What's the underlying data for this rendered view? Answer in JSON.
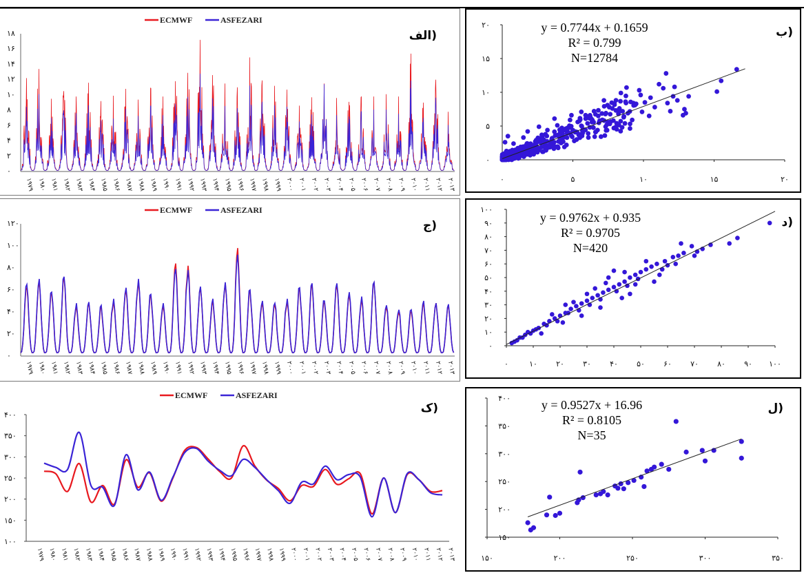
{
  "colors": {
    "ecmwf": "#e8191f",
    "asfezari": "#3a24d6",
    "point": "#3417d8"
  },
  "legend": {
    "ecmwf": "ECMWF",
    "asfezari": "ASFEZARI"
  },
  "chart_data": [
    {
      "id": "alef",
      "type": "line",
      "badge": "الف)",
      "title": "",
      "xlabel": "",
      "ylabel": "",
      "ylim": [
        0,
        18
      ],
      "yticks": [
        "۰",
        "۲",
        "۴",
        "۶",
        "۸",
        "۱۰",
        "۱۲",
        "۱۴",
        "۱۶",
        "۱۸"
      ],
      "xticks": [
        "۱۹۷۹",
        "۱۹۸۰",
        "۱۹۸۱",
        "۱۹۸۲",
        "۱۹۸۳",
        "۱۹۸۴",
        "۱۹۸۵",
        "۱۹۸۶",
        "۱۹۸۷",
        "۱۹۸۸",
        "۱۹۸۹",
        "۱۹۹۰",
        "۱۹۹۱",
        "۱۹۹۲",
        "۱۹۹۳",
        "۱۹۹۴",
        "۱۹۹۵",
        "۱۹۹۶",
        "۱۹۹۷",
        "۱۹۹۸",
        "۱۹۹۹",
        "۲۰۰۰",
        "۲۰۰۱",
        "۲۰۰۲",
        "۲۰۰۳",
        "۲۰۰۴",
        "۲۰۰۵",
        "۲۰۰۶",
        "۲۰۰۷",
        "۲۰۰۸",
        "۲۰۰۹",
        "۲۰۱۰",
        "۲۰۱۱",
        "۲۰۱۲",
        "۲۰۱۳"
      ],
      "series_note": "daily values 1979-2013, peak per year",
      "series": [
        {
          "name": "ECMWF",
          "peaks": [
            12.2,
            13.4,
            9.5,
            10.5,
            9.8,
            11.6,
            9.2,
            9.9,
            10.8,
            9.4,
            10.9,
            9.8,
            11.8,
            12.9,
            17.2,
            12.6,
            11.5,
            11.0,
            14.9,
            11.9,
            11.2,
            10.7,
            8.6,
            9.7,
            11.5,
            9.6,
            9.1,
            9.8,
            9.8,
            10.1,
            9.8,
            15.4,
            9.0,
            12.0,
            7.8
          ]
        },
        {
          "name": "ASFEZARI",
          "peaks": [
            9.2,
            11.0,
            7.6,
            8.7,
            8.3,
            9.4,
            7.3,
            7.5,
            8.9,
            7.9,
            9.3,
            8.0,
            9.6,
            10.6,
            13.9,
            10.4,
            9.3,
            9.0,
            12.2,
            9.9,
            9.4,
            9.2,
            7.1,
            8.1,
            12.4,
            8.0,
            7.8,
            8.5,
            8.8,
            8.8,
            8.2,
            12.9,
            7.6,
            10.5,
            6.6
          ]
        }
      ]
    },
    {
      "id": "be",
      "type": "scatter",
      "badge": "ب)",
      "equation": "y = 0.7744x + 0.1659",
      "r2": "R² = 0.799",
      "n": "N=12784",
      "xlim": [
        0,
        20
      ],
      "ylim": [
        0,
        20
      ],
      "xticks": [
        "۰",
        "۵",
        "۱۰",
        "۱۵",
        "۲۰"
      ],
      "yticks": [
        "۰",
        "۵",
        "۱۰",
        "۱۵",
        "۲۰"
      ],
      "trend": {
        "slope": 0.7744,
        "intercept": 0.1659,
        "x_range": [
          0,
          17.2
        ]
      },
      "points": [
        [
          16.6,
          13.4
        ],
        [
          15.2,
          10.1
        ],
        [
          15.5,
          11.7
        ],
        [
          11.6,
          12.8
        ],
        [
          12.1,
          9.4
        ],
        [
          12.8,
          6.6
        ],
        [
          11.9,
          7.2
        ],
        [
          12.4,
          8.8
        ],
        [
          10.5,
          9.2
        ],
        [
          9.7,
          10.3
        ],
        [
          11.1,
          11.2
        ],
        [
          8.4,
          9.9
        ],
        [
          7.2,
          8.8
        ],
        [
          9.9,
          7.1
        ],
        [
          8.6,
          6.3
        ],
        [
          6.9,
          5.8
        ],
        [
          10.4,
          6.5
        ],
        [
          11.4,
          10.6
        ],
        [
          13.2,
          9.4
        ],
        [
          12.9,
          7.5
        ],
        [
          9.4,
          8.1
        ],
        [
          7.8,
          7.6
        ],
        [
          6.5,
          7.2
        ],
        [
          5.9,
          6.6
        ],
        [
          8.1,
          5.4
        ],
        [
          6.2,
          4.8
        ],
        [
          4.8,
          5.9
        ],
        [
          5.4,
          3.8
        ],
        [
          4.5,
          4.6
        ],
        [
          3.9,
          5.1
        ],
        [
          3.2,
          4.4
        ],
        [
          2.8,
          3.7
        ],
        [
          2.4,
          2.9
        ],
        [
          1.9,
          2.1
        ],
        [
          1.5,
          3.3
        ],
        [
          1.2,
          1.6
        ],
        [
          0.8,
          2.4
        ],
        [
          0.6,
          0.8
        ],
        [
          0.4,
          3.5
        ],
        [
          0.3,
          1.3
        ],
        [
          2.1,
          1.1
        ],
        [
          3.4,
          2.2
        ],
        [
          4.1,
          3.1
        ],
        [
          5.1,
          2.8
        ],
        [
          6.6,
          4.1
        ],
        [
          7.4,
          5.2
        ],
        [
          8.9,
          6.9
        ],
        [
          10.1,
          8.5
        ],
        [
          4.4,
          1.9
        ],
        [
          2.6,
          4.9
        ],
        [
          1.8,
          4.2
        ],
        [
          0.9,
          0.4
        ],
        [
          1.6,
          0.7
        ],
        [
          3.7,
          6.1
        ],
        [
          5.6,
          7.1
        ],
        [
          6.8,
          6.5
        ],
        [
          7.9,
          4.7
        ],
        [
          9.2,
          5.9
        ],
        [
          10.8,
          7.8
        ],
        [
          0.2,
          2.6
        ],
        [
          3.1,
          1.4
        ],
        [
          5.3,
          4.1
        ],
        [
          6.1,
          3.3
        ],
        [
          4.9,
          6.6
        ],
        [
          2.2,
          0.9
        ],
        [
          12.2,
          10.8
        ],
        [
          13.0,
          6.9
        ],
        [
          8.8,
          10.7
        ],
        [
          9.8,
          9.6
        ],
        [
          11.7,
          8.4
        ],
        [
          3.5,
          3.0
        ],
        [
          2.9,
          2.5
        ],
        [
          1.3,
          1.9
        ],
        [
          0.7,
          1.2
        ],
        [
          4.7,
          4.0
        ]
      ]
    },
    {
      "id": "je",
      "type": "line",
      "badge": "ج)",
      "title": "",
      "xlabel": "",
      "ylabel": "",
      "ylim": [
        0,
        120
      ],
      "yticks": [
        "۰",
        "۲۰",
        "۴۰",
        "۶۰",
        "۸۰",
        "۱۰۰",
        "۱۲۰"
      ],
      "xticks": [
        "۱۹۷۹",
        "۱۹۸۰",
        "۱۹۸۱",
        "۱۹۸۲",
        "۱۹۸۳",
        "۱۹۸۴",
        "۱۹۸۵",
        "۱۹۸۶",
        "۱۹۸۷",
        "۱۹۸۸",
        "۱۹۸۹",
        "۱۹۹۰",
        "۱۹۹۱",
        "۱۹۹۲",
        "۱۹۹۳",
        "۱۹۹۴",
        "۱۹۹۵",
        "۱۹۹۶",
        "۱۹۹۷",
        "۱۹۹۸",
        "۱۹۹۹",
        "۲۰۰۰",
        "۲۰۰۱",
        "۲۰۰۲",
        "۲۰۰۳",
        "۲۰۰۴",
        "۲۰۰۵",
        "۲۰۰۶",
        "۲۰۰۷",
        "۲۰۰۸",
        "۲۰۰۹",
        "۲۰۱۰",
        "۲۰۱۱",
        "۲۰۱۲",
        "۲۰۱۳"
      ],
      "series_note": "monthly values 1979-2013, peak per year",
      "series": [
        {
          "name": "ECMWF",
          "peaks": [
            62,
            68,
            56,
            70,
            46,
            48,
            44,
            50,
            60,
            68,
            54,
            46,
            84,
            82,
            62,
            50,
            66,
            98,
            58,
            48,
            46,
            50,
            60,
            64,
            48,
            64,
            56,
            52,
            66,
            44,
            40,
            40,
            48,
            48,
            46
          ]
        },
        {
          "name": "ASFEZARI",
          "peaks": [
            65,
            70,
            58,
            72,
            48,
            49,
            46,
            52,
            62,
            70,
            56,
            48,
            79,
            78,
            63,
            52,
            67,
            92,
            60,
            50,
            48,
            52,
            62,
            66,
            50,
            66,
            58,
            54,
            67,
            46,
            42,
            42,
            50,
            48,
            47
          ]
        }
      ]
    },
    {
      "id": "dal",
      "type": "scatter",
      "badge": "د)",
      "equation": "y = 0.9762x + 0.935",
      "r2": "R² = 0.9705",
      "n": "N=420",
      "xlim": [
        0,
        100
      ],
      "ylim": [
        0,
        100
      ],
      "xticks": [
        "۰",
        "۱۰",
        "۲۰",
        "۳۰",
        "۴۰",
        "۵۰",
        "۶۰",
        "۷۰",
        "۸۰",
        "۹۰",
        "۱۰۰"
      ],
      "yticks": [
        "۰",
        "۱۰",
        "۲۰",
        "۳۰",
        "۴۰",
        "۵۰",
        "۶۰",
        "۷۰",
        "۸۰",
        "۹۰",
        "۱۰۰"
      ],
      "trend": {
        "slope": 0.9762,
        "intercept": 0.935,
        "x_range": [
          0,
          100
        ]
      },
      "points": [
        [
          98,
          90
        ],
        [
          86,
          79
        ],
        [
          83,
          75
        ],
        [
          76,
          74
        ],
        [
          73,
          71
        ],
        [
          71,
          69
        ],
        [
          69,
          73
        ],
        [
          66,
          68
        ],
        [
          64,
          66
        ],
        [
          62,
          65
        ],
        [
          60,
          59
        ],
        [
          58,
          56
        ],
        [
          56,
          60
        ],
        [
          54,
          58
        ],
        [
          52,
          56
        ],
        [
          50,
          54
        ],
        [
          49,
          49
        ],
        [
          48,
          52
        ],
        [
          46,
          50
        ],
        [
          45,
          44
        ],
        [
          44,
          47
        ],
        [
          42,
          45
        ],
        [
          41,
          40
        ],
        [
          40,
          43
        ],
        [
          38,
          41
        ],
        [
          36,
          39
        ],
        [
          35,
          34
        ],
        [
          34,
          37
        ],
        [
          32,
          35
        ],
        [
          31,
          30
        ],
        [
          30,
          33
        ],
        [
          28,
          31
        ],
        [
          27,
          26
        ],
        [
          26,
          29
        ],
        [
          24,
          27
        ],
        [
          23,
          24
        ],
        [
          22,
          24
        ],
        [
          20,
          22
        ],
        [
          19,
          18
        ],
        [
          18,
          20
        ],
        [
          16,
          18
        ],
        [
          15,
          15
        ],
        [
          14,
          16
        ],
        [
          12,
          13
        ],
        [
          11,
          12
        ],
        [
          10,
          11
        ],
        [
          9,
          9
        ],
        [
          8,
          10
        ],
        [
          7,
          8
        ],
        [
          6,
          6
        ],
        [
          5,
          6
        ],
        [
          4,
          4
        ],
        [
          3,
          3
        ],
        [
          2,
          2
        ],
        [
          40,
          55
        ],
        [
          38,
          50
        ],
        [
          46,
          38
        ],
        [
          52,
          62
        ],
        [
          57,
          52
        ],
        [
          35,
          28
        ],
        [
          30,
          38
        ],
        [
          28,
          22
        ],
        [
          25,
          32
        ],
        [
          22,
          30
        ],
        [
          55,
          47
        ],
        [
          63,
          60
        ],
        [
          65,
          75
        ],
        [
          44,
          54
        ],
        [
          33,
          42
        ],
        [
          17,
          23
        ],
        [
          13,
          9
        ],
        [
          48,
          45
        ],
        [
          59,
          62
        ],
        [
          70,
          66
        ],
        [
          21,
          17
        ],
        [
          43,
          35
        ],
        [
          37,
          46
        ]
      ]
    },
    {
      "id": "kaf",
      "type": "line",
      "badge": "ک)",
      "title": "",
      "xlabel": "",
      "ylabel": "",
      "ylim": [
        100,
        400
      ],
      "yticks": [
        "۱۰۰",
        "۱۵۰",
        "۲۰۰",
        "۲۵۰",
        "۳۰۰",
        "۳۵۰",
        "۴۰۰"
      ],
      "x": [
        "۱۹۷۹",
        "۱۹۸۰",
        "۱۹۸۱",
        "۱۹۸۲",
        "۱۹۸۳",
        "۱۹۸۴",
        "۱۹۸۵",
        "۱۹۸۶",
        "۱۹۸۷",
        "۱۹۸۸",
        "۱۹۸۹",
        "۱۹۹۰",
        "۱۹۹۱",
        "۱۹۹۲",
        "۱۹۹۳",
        "۱۹۹۴",
        "۱۹۹۵",
        "۱۹۹۶",
        "۱۹۹۷",
        "۱۹۹۸",
        "۱۹۹۹",
        "۲۰۰۰",
        "۲۰۰۱",
        "۲۰۰۲",
        "۲۰۰۳",
        "۲۰۰۴",
        "۲۰۰۵",
        "۲۰۰۶",
        "۲۰۰۷",
        "۲۰۰۸",
        "۲۰۰۹",
        "۲۰۱۰",
        "۲۰۱۱",
        "۲۰۱۲",
        "۲۰۱۳"
      ],
      "series": [
        {
          "name": "ECMWF",
          "values": [
            266,
            260,
            218,
            284,
            193,
            232,
            188,
            293,
            228,
            262,
            195,
            250,
            315,
            322,
            295,
            265,
            250,
            326,
            278,
            245,
            225,
            196,
            232,
            230,
            270,
            235,
            248,
            260,
            165,
            250,
            168,
            258,
            246,
            218,
            220
          ]
        },
        {
          "name": "ASFEZARI",
          "values": [
            285,
            275,
            270,
            358,
            232,
            228,
            185,
            305,
            222,
            264,
            197,
            252,
            310,
            320,
            290,
            268,
            255,
            294,
            275,
            246,
            220,
            190,
            240,
            236,
            278,
            246,
            258,
            252,
            158,
            250,
            168,
            260,
            246,
            215,
            210
          ]
        }
      ]
    },
    {
      "id": "lam",
      "type": "scatter",
      "badge": "ل)",
      "equation": "y = 0.9527x + 16.96",
      "r2": "R² = 0.8105",
      "n": "N=35",
      "xlim": [
        150,
        350
      ],
      "ylim": [
        150,
        400
      ],
      "xticks": [
        "۱۵۰",
        "۲۰۰",
        "۲۵۰",
        "۳۰۰",
        "۳۵۰"
      ],
      "yticks": [
        "۱۵۰",
        "۲۰۰",
        "۲۵۰",
        "۳۰۰",
        "۳۵۰",
        "۴۰۰"
      ],
      "trend": {
        "slope": 0.9527,
        "intercept": 16.96,
        "x_range": [
          178,
          325
        ]
      },
      "points": [
        [
          178,
          176
        ],
        [
          180,
          163
        ],
        [
          182,
          167
        ],
        [
          191,
          190
        ],
        [
          193,
          222
        ],
        [
          197,
          189
        ],
        [
          200,
          193
        ],
        [
          212,
          212
        ],
        [
          213,
          217
        ],
        [
          214,
          267
        ],
        [
          216,
          221
        ],
        [
          225,
          226
        ],
        [
          228,
          228
        ],
        [
          230,
          232
        ],
        [
          233,
          226
        ],
        [
          238,
          242
        ],
        [
          240,
          238
        ],
        [
          242,
          246
        ],
        [
          244,
          237
        ],
        [
          247,
          248
        ],
        [
          251,
          252
        ],
        [
          256,
          258
        ],
        [
          258,
          241
        ],
        [
          260,
          269
        ],
        [
          263,
          272
        ],
        [
          265,
          276
        ],
        [
          270,
          281
        ],
        [
          275,
          272
        ],
        [
          280,
          358
        ],
        [
          287,
          303
        ],
        [
          298,
          306
        ],
        [
          300,
          287
        ],
        [
          306,
          306
        ],
        [
          325,
          322
        ],
        [
          325,
          292
        ]
      ]
    }
  ]
}
